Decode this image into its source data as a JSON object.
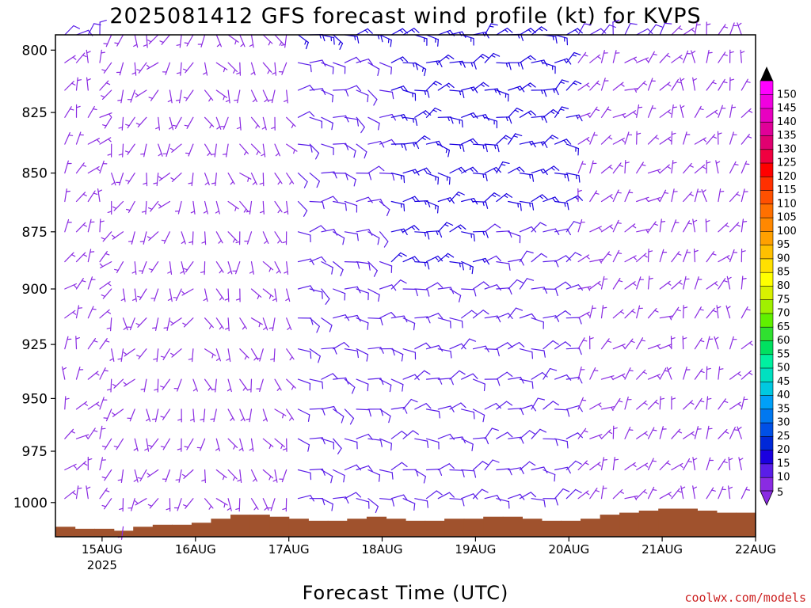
{
  "chart_data": {
    "type": "wind_barb_profile",
    "title": "2025081412 GFS forecast wind profile (kt) for KVPS",
    "xlabel": "Forecast Time (UTC)",
    "ylabel": "",
    "credit": "coolwx.com/models",
    "x_ticks": [
      {
        "label": "15AUG",
        "sublabel": "2025",
        "x": 0.5
      },
      {
        "label": "16AUG",
        "sublabel": "",
        "x": 1.5
      },
      {
        "label": "17AUG",
        "sublabel": "",
        "x": 2.5
      },
      {
        "label": "18AUG",
        "sublabel": "",
        "x": 3.5
      },
      {
        "label": "19AUG",
        "sublabel": "",
        "x": 4.5
      },
      {
        "label": "20AUG",
        "sublabel": "",
        "x": 5.5
      },
      {
        "label": "21AUG",
        "sublabel": "",
        "x": 6.5
      },
      {
        "label": "22AUG",
        "sublabel": "",
        "x": 7.5
      }
    ],
    "y_ticks": [
      "800",
      "825",
      "850",
      "875",
      "900",
      "925",
      "950",
      "975",
      "1000"
    ],
    "xlim": [
      0,
      7.5
    ],
    "ylim_hpa": [
      794,
      1017
    ],
    "y_scale": "log-pressure",
    "pressure_levels_hpa": [
      794,
      805,
      816,
      827,
      838,
      850,
      862,
      875,
      888,
      900,
      913,
      927,
      941,
      955,
      969,
      984,
      998,
      1012
    ],
    "time_step_hours": 3,
    "ground_color": "#a0522d",
    "colorbar": {
      "label_values": [
        5,
        10,
        15,
        20,
        25,
        30,
        35,
        40,
        45,
        50,
        55,
        60,
        65,
        70,
        75,
        80,
        85,
        90,
        95,
        100,
        105,
        110,
        115,
        120,
        125,
        130,
        135,
        140,
        145,
        150
      ],
      "colors": [
        "#8a2be2",
        "#5a1ee8",
        "#1a00e0",
        "#0028d8",
        "#0050e6",
        "#0078f0",
        "#00a0f8",
        "#00c8e0",
        "#00e0c0",
        "#00f0a0",
        "#00e060",
        "#30e030",
        "#60f000",
        "#a0f000",
        "#d8f000",
        "#ffff00",
        "#ffe000",
        "#ffc000",
        "#ffa000",
        "#ff8800",
        "#ff7000",
        "#ff5000",
        "#ff3000",
        "#ff0000",
        "#f00040",
        "#e00070",
        "#e00098",
        "#e800c0",
        "#f000e0",
        "#ff00ff"
      ]
    },
    "periods": [
      {
        "day": "15AUG",
        "direction_deg": 30,
        "speed_kt": 8,
        "upper_speed_kt": 10
      },
      {
        "day": "16AUG",
        "direction_deg": 200,
        "speed_kt": 7,
        "upper_speed_kt": 8
      },
      {
        "day": "17AUG",
        "direction_deg": 160,
        "speed_kt": 8,
        "upper_speed_kt": 7
      },
      {
        "day": "18AUG",
        "direction_deg": 100,
        "speed_kt": 10,
        "upper_speed_kt": 15
      },
      {
        "day": "19AUG",
        "direction_deg": 80,
        "speed_kt": 12,
        "upper_speed_kt": 18
      },
      {
        "day": "20AUG",
        "direction_deg": 70,
        "speed_kt": 12,
        "upper_speed_kt": 17
      },
      {
        "day": "21AUG",
        "direction_deg": 40,
        "speed_kt": 9,
        "upper_speed_kt": 10
      },
      {
        "day": "22AUG",
        "direction_deg": 20,
        "speed_kt": 8,
        "upper_speed_kt": 6
      }
    ],
    "ground_top_hpa": [
      1012,
      1013,
      1013,
      1014,
      1012,
      1011,
      1011,
      1010,
      1008,
      1006,
      1006,
      1007,
      1008,
      1009,
      1009,
      1008,
      1007,
      1008,
      1009,
      1009,
      1008,
      1008,
      1007,
      1007,
      1008,
      1009,
      1009,
      1008,
      1006,
      1005,
      1004,
      1003,
      1003,
      1004,
      1005,
      1005
    ]
  }
}
